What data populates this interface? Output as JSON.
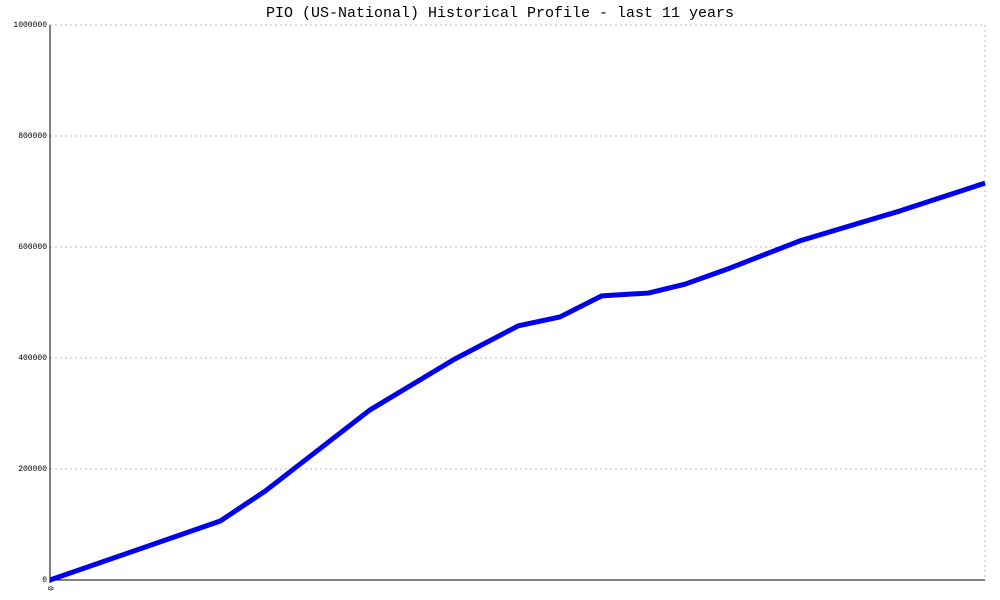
{
  "chart_data": {
    "type": "line",
    "title": "PIO (US-National) Historical Profile - last 11 years",
    "x": [
      0,
      2,
      2.53,
      3.76,
      4.76,
      5.51,
      6,
      6.49,
      7.04,
      7.47,
      8,
      8.82,
      10,
      11
    ],
    "series": [
      {
        "color": "#0000ee",
        "values": [
          0,
          106000,
          160000,
          306000,
          398000,
          458000,
          474000,
          512000,
          517000,
          533000,
          562000,
          611000,
          665000,
          715000
        ]
      }
    ],
    "xlim": [
      0,
      11
    ],
    "xticks": [
      0
    ],
    "ylim": [
      0,
      1000000
    ],
    "yticks": [
      0,
      200000,
      400000,
      600000,
      800000,
      1000000
    ],
    "grid": true
  }
}
